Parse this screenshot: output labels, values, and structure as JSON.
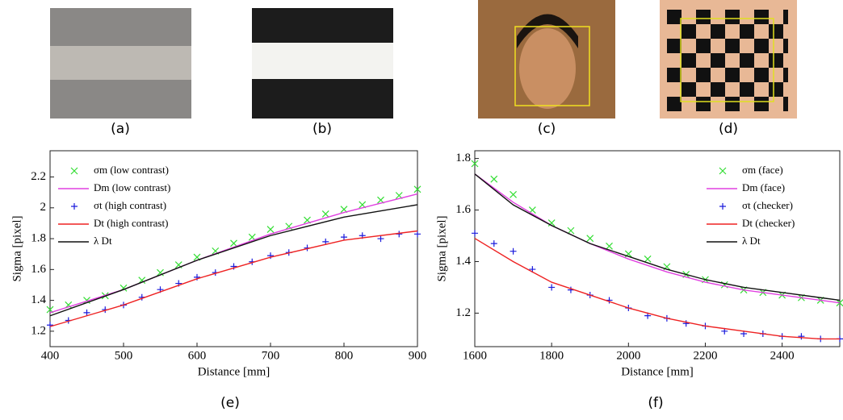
{
  "panels": [
    {
      "label": "(a)"
    },
    {
      "label": "(b)"
    },
    {
      "label": "(c)"
    },
    {
      "label": "(d)"
    }
  ],
  "chart_data": [
    {
      "type": "scatter",
      "caption": "(e)",
      "xlabel": "Distance [mm]",
      "ylabel": "Sigma [pixel]",
      "xlim": [
        400,
        900
      ],
      "ylim": [
        1.1,
        2.37
      ],
      "xticks": [
        400,
        500,
        600,
        700,
        800,
        900
      ],
      "yticks": [
        1.2,
        1.4,
        1.6,
        1.8,
        2,
        2.2
      ],
      "legend": "upper left",
      "series": [
        {
          "name": "σm (low contrast)",
          "color": "#33dd33",
          "marker": "x",
          "x": [
            400,
            425,
            450,
            475,
            500,
            525,
            550,
            575,
            600,
            625,
            650,
            675,
            700,
            725,
            750,
            775,
            800,
            825,
            850,
            875,
            900
          ],
          "values": [
            1.34,
            1.37,
            1.4,
            1.43,
            1.48,
            1.53,
            1.58,
            1.63,
            1.68,
            1.72,
            1.77,
            1.81,
            1.86,
            1.88,
            1.92,
            1.96,
            1.99,
            2.02,
            2.05,
            2.08,
            2.12
          ]
        },
        {
          "name": "Dm (low contrast)",
          "color": "#e040e0",
          "marker": "line",
          "x": [
            400,
            500,
            600,
            700,
            800,
            900
          ],
          "values": [
            1.32,
            1.47,
            1.66,
            1.83,
            1.97,
            2.09
          ]
        },
        {
          "name": "σt (high contrast)",
          "color": "#1a1adc",
          "marker": "+",
          "x": [
            400,
            425,
            450,
            475,
            500,
            525,
            550,
            575,
            600,
            625,
            650,
            675,
            700,
            725,
            750,
            775,
            800,
            825,
            850,
            875,
            900
          ],
          "values": [
            1.24,
            1.27,
            1.32,
            1.34,
            1.37,
            1.42,
            1.47,
            1.51,
            1.55,
            1.58,
            1.62,
            1.65,
            1.69,
            1.71,
            1.74,
            1.78,
            1.81,
            1.82,
            1.8,
            1.83,
            1.83
          ]
        },
        {
          "name": "Dt (high contrast)",
          "color": "#ee2222",
          "marker": "line",
          "x": [
            400,
            500,
            600,
            700,
            800,
            900
          ],
          "values": [
            1.23,
            1.37,
            1.54,
            1.68,
            1.79,
            1.85
          ]
        },
        {
          "name": "λ Dt",
          "color": "#111111",
          "marker": "line",
          "x": [
            400,
            500,
            600,
            700,
            800,
            900
          ],
          "values": [
            1.3,
            1.47,
            1.66,
            1.82,
            1.94,
            2.02
          ]
        }
      ]
    },
    {
      "type": "scatter",
      "caption": "(f)",
      "xlabel": "Distance [mm]",
      "ylabel": "Sigma [pixel]",
      "xlim": [
        1600,
        2550
      ],
      "ylim": [
        1.07,
        1.83
      ],
      "xticks": [
        1600,
        1800,
        2000,
        2200,
        2400
      ],
      "yticks": [
        1.2,
        1.4,
        1.6,
        1.8
      ],
      "legend": "upper right",
      "series": [
        {
          "name": "σm (face)",
          "color": "#33dd33",
          "marker": "x",
          "x": [
            1600,
            1650,
            1700,
            1750,
            1800,
            1850,
            1900,
            1950,
            2000,
            2050,
            2100,
            2150,
            2200,
            2250,
            2300,
            2350,
            2400,
            2450,
            2500,
            2550
          ],
          "values": [
            1.78,
            1.72,
            1.66,
            1.6,
            1.55,
            1.52,
            1.49,
            1.46,
            1.43,
            1.41,
            1.38,
            1.35,
            1.33,
            1.31,
            1.29,
            1.28,
            1.27,
            1.26,
            1.25,
            1.24
          ]
        },
        {
          "name": "Dm (face)",
          "color": "#e040e0",
          "marker": "line",
          "x": [
            1600,
            1700,
            1800,
            1900,
            2000,
            2100,
            2200,
            2300,
            2400,
            2500,
            2550
          ],
          "values": [
            1.74,
            1.63,
            1.54,
            1.47,
            1.41,
            1.36,
            1.32,
            1.29,
            1.27,
            1.25,
            1.24
          ]
        },
        {
          "name": "σt (checker)",
          "color": "#1a1adc",
          "marker": "+",
          "x": [
            1600,
            1650,
            1700,
            1750,
            1800,
            1850,
            1900,
            1950,
            2000,
            2050,
            2100,
            2150,
            2200,
            2250,
            2300,
            2350,
            2400,
            2450,
            2500,
            2550
          ],
          "values": [
            1.51,
            1.47,
            1.44,
            1.37,
            1.3,
            1.29,
            1.27,
            1.25,
            1.22,
            1.19,
            1.18,
            1.16,
            1.15,
            1.13,
            1.12,
            1.12,
            1.11,
            1.11,
            1.1,
            1.1
          ]
        },
        {
          "name": "Dt (checker)",
          "color": "#ee2222",
          "marker": "line",
          "x": [
            1600,
            1700,
            1800,
            1900,
            2000,
            2100,
            2200,
            2300,
            2400,
            2500,
            2550
          ],
          "values": [
            1.49,
            1.4,
            1.32,
            1.27,
            1.22,
            1.18,
            1.15,
            1.13,
            1.11,
            1.1,
            1.1
          ]
        },
        {
          "name": "λ Dt",
          "color": "#111111",
          "marker": "line",
          "x": [
            1600,
            1700,
            1800,
            1900,
            2000,
            2100,
            2200,
            2300,
            2400,
            2500,
            2550
          ],
          "values": [
            1.74,
            1.62,
            1.54,
            1.47,
            1.42,
            1.37,
            1.33,
            1.3,
            1.28,
            1.26,
            1.25
          ]
        }
      ]
    }
  ]
}
